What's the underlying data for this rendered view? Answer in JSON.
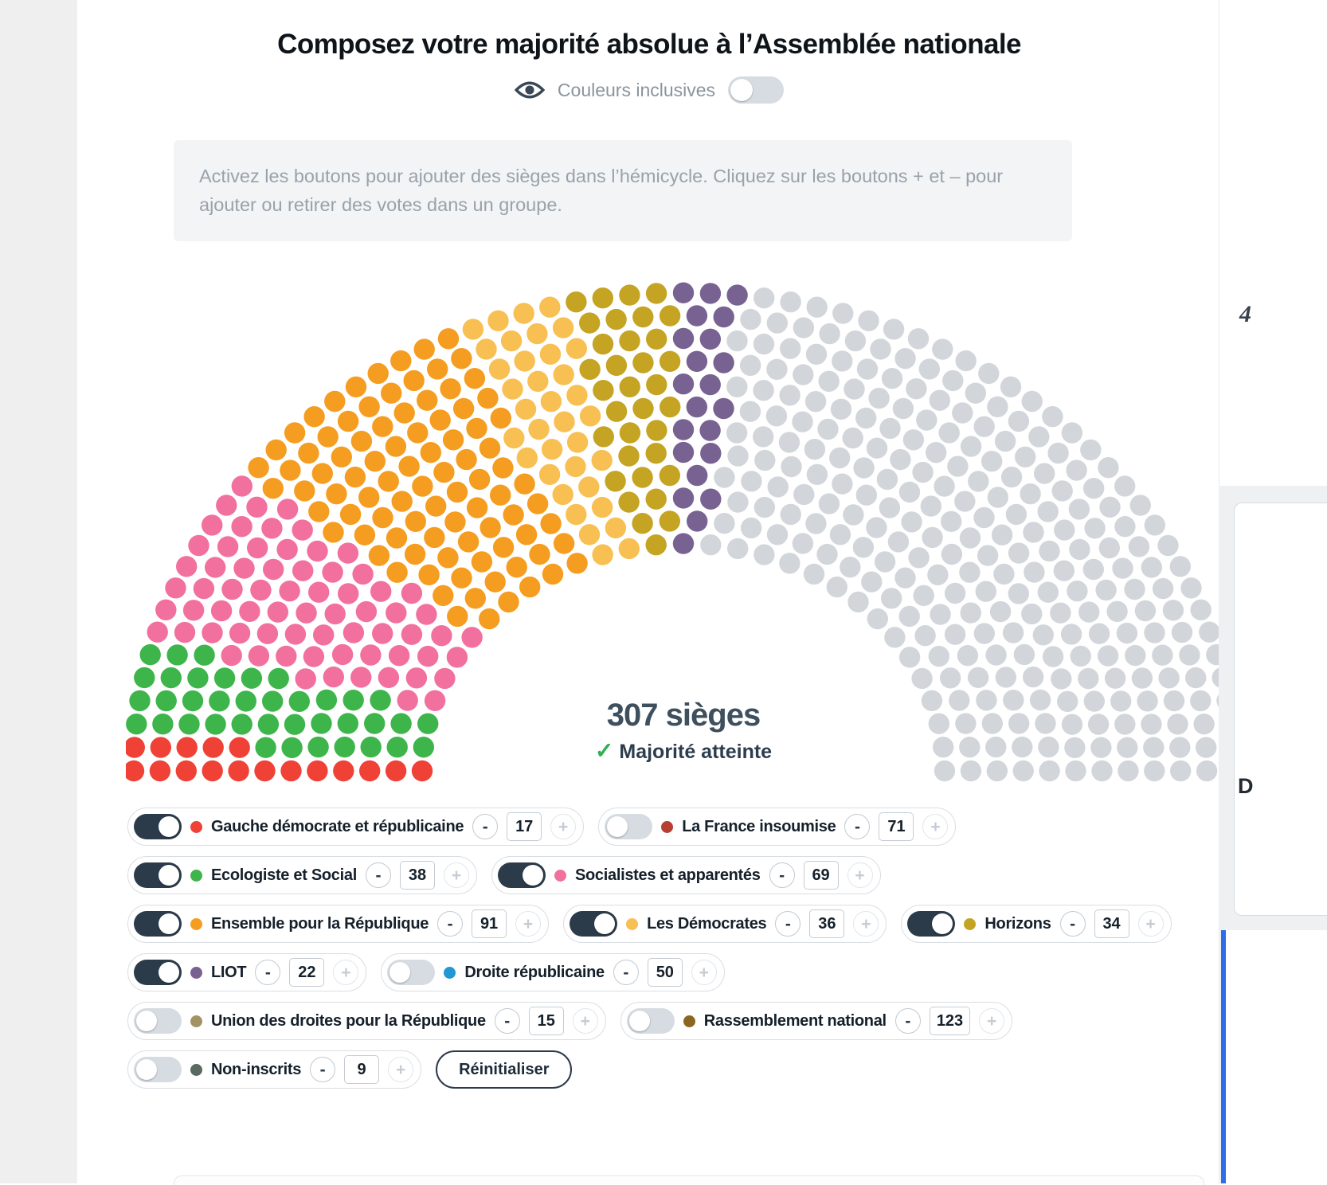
{
  "page": {
    "title": "Composez votre majorité absolue à l’Assemblée nationale",
    "inclusive_colors": {
      "label": "Couleurs inclusives",
      "state": "off"
    },
    "instructions": "Activez les boutons pour ajouter des sièges dans l’hémicycle. Cliquez sur les boutons + et – pour ajouter ou retirer des votes dans un groupe.",
    "reset_label": "Réinitialiser",
    "minus_glyph": "-",
    "plus_glyph": "+",
    "check_glyph": "✓"
  },
  "chart_data": {
    "type": "parliament-hemicycle",
    "title": "Composez votre majorité absolue à l’Assemblée nationale",
    "total_seats": 577,
    "selected_seats": 307,
    "selected_seats_label": "307 sièges",
    "majority_status": "Majorité atteinte",
    "majority_reached": true,
    "inactive_seat_color": "#d2d6da",
    "groups": [
      {
        "id": "gdr",
        "label": "Gauche démocrate et républicaine",
        "seats": 17,
        "color": "#f04136",
        "active": true
      },
      {
        "id": "lfi",
        "label": "La France insoumise",
        "seats": 71,
        "color": "#b73e32",
        "active": false
      },
      {
        "id": "eco",
        "label": "Ecologiste et Social",
        "seats": 38,
        "color": "#3eb54b",
        "active": true
      },
      {
        "id": "soc",
        "label": "Socialistes et apparentés",
        "seats": 69,
        "color": "#f2709d",
        "active": true
      },
      {
        "id": "epr",
        "label": "Ensemble pour la République",
        "seats": 91,
        "color": "#f59d20",
        "active": true
      },
      {
        "id": "dem",
        "label": "Les Démocrates",
        "seats": 36,
        "color": "#f8c053",
        "active": true
      },
      {
        "id": "hor",
        "label": "Horizons",
        "seats": 34,
        "color": "#c4a422",
        "active": true
      },
      {
        "id": "liot",
        "label": "LIOT",
        "seats": 22,
        "color": "#786292",
        "active": true
      },
      {
        "id": "dr",
        "label": "Droite républicaine",
        "seats": 50,
        "color": "#2098d5",
        "active": false
      },
      {
        "id": "udr",
        "label": "Union des droites pour la République",
        "seats": 15,
        "color": "#a39364",
        "active": false
      },
      {
        "id": "rn",
        "label": "Rassemblement national",
        "seats": 123,
        "color": "#8a6721",
        "active": false
      },
      {
        "id": "ni",
        "label": "Non-inscrits",
        "seats": 9,
        "color": "#5a6a61",
        "active": false
      }
    ]
  },
  "legend_rows": [
    [
      "gdr",
      "lfi"
    ],
    [
      "eco",
      "soc"
    ],
    [
      "epr",
      "dem",
      "hor"
    ],
    [
      "liot",
      "dr"
    ],
    [
      "udr",
      "rn"
    ],
    [
      "ni",
      "reset"
    ]
  ],
  "edge_fragments": {
    "top_right": "4",
    "mid_right": "D"
  }
}
